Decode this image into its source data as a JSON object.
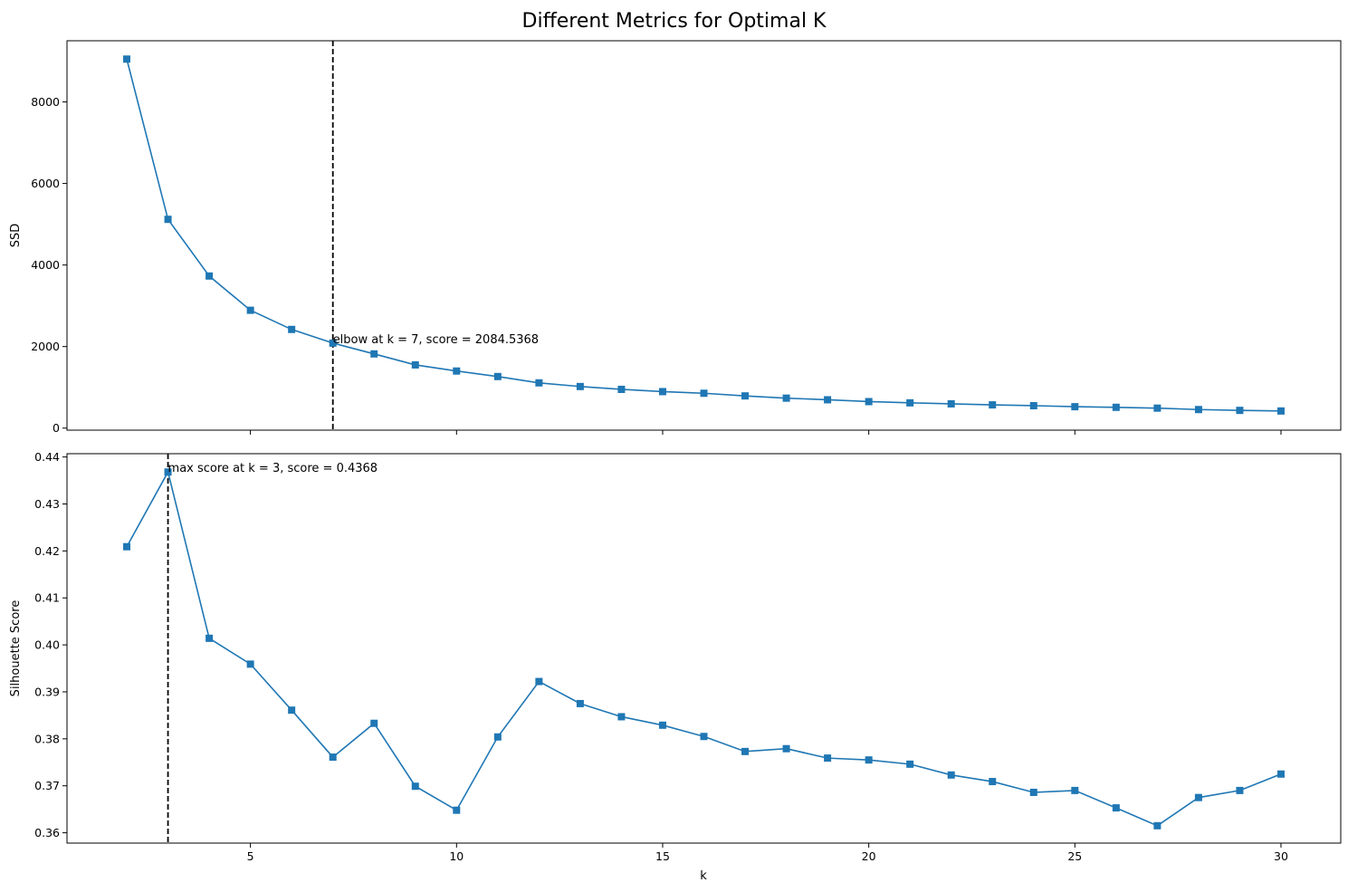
{
  "figure": {
    "title": "Different Metrics for Optimal K"
  },
  "chart_data": [
    {
      "type": "line",
      "marker": "square",
      "color": "#1f77b4",
      "xlabel": "",
      "ylabel": "SSD",
      "xlim": [
        0.55,
        31.45
      ],
      "ylim": [
        -50,
        9500
      ],
      "x_ticks": [
        5,
        10,
        15,
        20,
        25,
        30
      ],
      "show_x_tick_labels": false,
      "y_ticks": [
        0,
        2000,
        4000,
        6000,
        8000
      ],
      "x": [
        2,
        3,
        4,
        5,
        6,
        7,
        8,
        9,
        10,
        11,
        12,
        13,
        14,
        15,
        16,
        17,
        18,
        19,
        20,
        21,
        22,
        23,
        24,
        25,
        26,
        27,
        28,
        29,
        30
      ],
      "values": [
        9050,
        5120,
        3730,
        2890,
        2420,
        2084.5368,
        1820,
        1550,
        1400,
        1265,
        1110,
        1020,
        950,
        895,
        855,
        790,
        735,
        695,
        650,
        620,
        595,
        570,
        550,
        525,
        510,
        490,
        455,
        435,
        420
      ],
      "vline": {
        "x": 7,
        "style": "dashed",
        "color": "#000000"
      },
      "annotation": {
        "x": 7,
        "y": 2084.5368,
        "text": "elbow at k = 7, score = 2084.5368"
      },
      "grid": false
    },
    {
      "type": "line",
      "marker": "square",
      "color": "#1f77b4",
      "xlabel": "k",
      "ylabel": "Silhouette Score",
      "xlim": [
        0.55,
        31.45
      ],
      "ylim": [
        0.3578,
        0.4407
      ],
      "x_ticks": [
        5,
        10,
        15,
        20,
        25,
        30
      ],
      "show_x_tick_labels": true,
      "y_ticks": [
        0.36,
        0.37,
        0.38,
        0.39,
        0.4,
        0.41,
        0.42,
        0.43,
        0.44
      ],
      "x": [
        2,
        3,
        4,
        5,
        6,
        7,
        8,
        9,
        10,
        11,
        12,
        13,
        14,
        15,
        16,
        17,
        18,
        19,
        20,
        21,
        22,
        23,
        24,
        25,
        26,
        27,
        28,
        29,
        30
      ],
      "values": [
        0.4209,
        0.4368,
        0.4014,
        0.3959,
        0.3861,
        0.3761,
        0.3833,
        0.3699,
        0.3648,
        0.3804,
        0.3922,
        0.3875,
        0.3847,
        0.3829,
        0.3805,
        0.3773,
        0.3779,
        0.3759,
        0.3755,
        0.3746,
        0.3723,
        0.3709,
        0.3686,
        0.369,
        0.3653,
        0.3615,
        0.3675,
        0.369,
        0.3725
      ],
      "vline": {
        "x": 3,
        "style": "dashed",
        "color": "#000000"
      },
      "annotation": {
        "x": 3,
        "y": 0.4368,
        "text": "max score at k = 3, score = 0.4368"
      },
      "grid": false
    }
  ]
}
